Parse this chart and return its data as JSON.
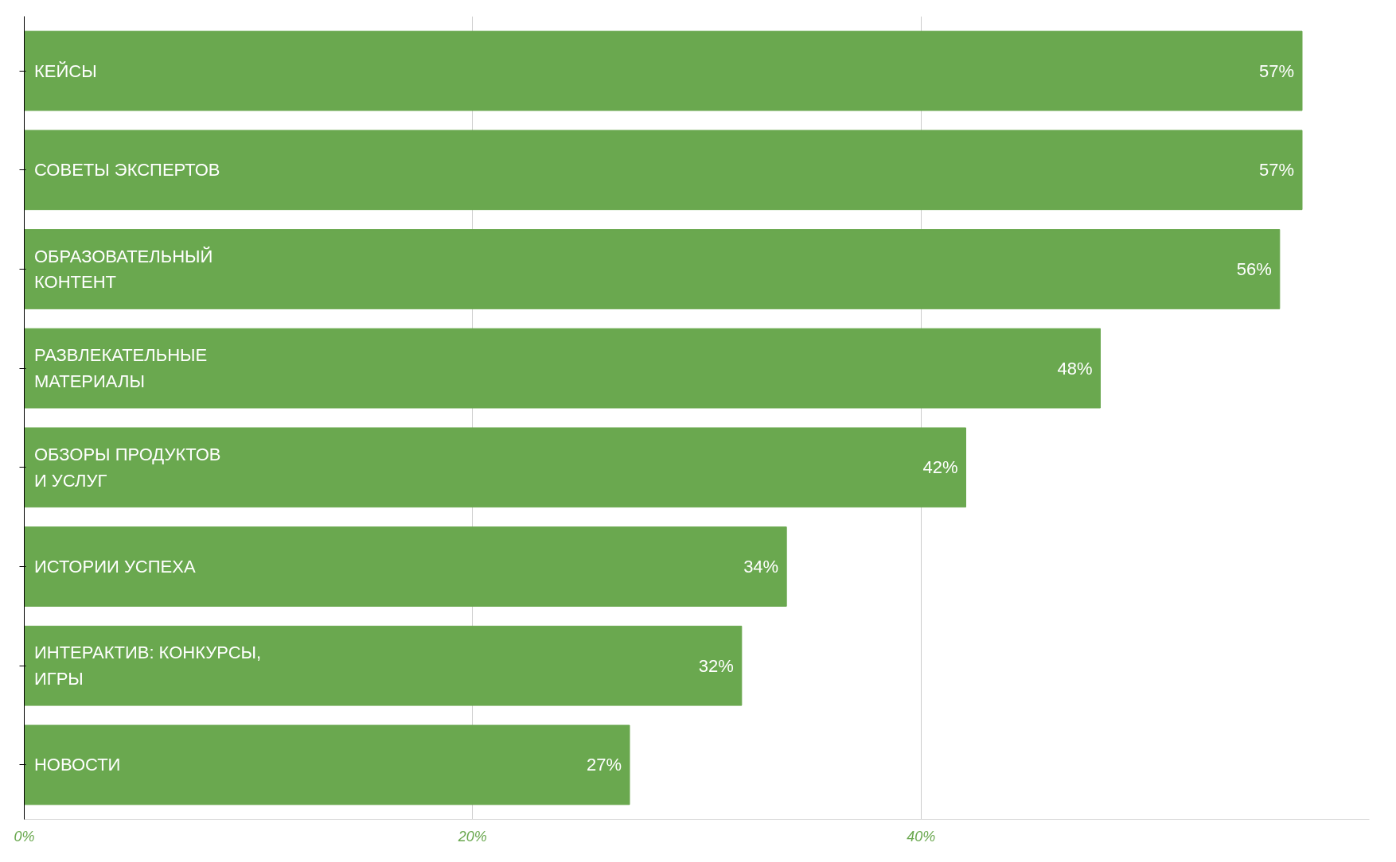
{
  "chart_data": {
    "type": "bar",
    "orientation": "horizontal",
    "categories": [
      "КЕЙСЫ",
      "СОВЕТЫ ЭКСПЕРТОВ",
      "ОБРАЗОВАТЕЛЬНЫЙ\nКОНТЕНТ",
      "РАЗВЛЕКАТЕЛЬНЫЕ\nМАТЕРИАЛЫ",
      "ОБЗОРЫ ПРОДУКТОВ\nИ УСЛУГ",
      "ИСТОРИИ УСПЕХА",
      "ИНТЕРАКТИВ: КОНКУРСЫ,\nИГРЫ",
      "НОВОСТИ"
    ],
    "values": [
      57,
      57,
      56,
      48,
      42,
      34,
      32,
      27
    ],
    "value_labels": [
      "57%",
      "57%",
      "56%",
      "48%",
      "42%",
      "34%",
      "32%",
      "27%"
    ],
    "color": "#6aa84f",
    "xlim": [
      0,
      60
    ],
    "xticks": [
      {
        "value": 0,
        "label": "0%"
      },
      {
        "value": 20,
        "label": "20%"
      },
      {
        "value": 40,
        "label": "40%"
      }
    ],
    "grid": "x"
  }
}
